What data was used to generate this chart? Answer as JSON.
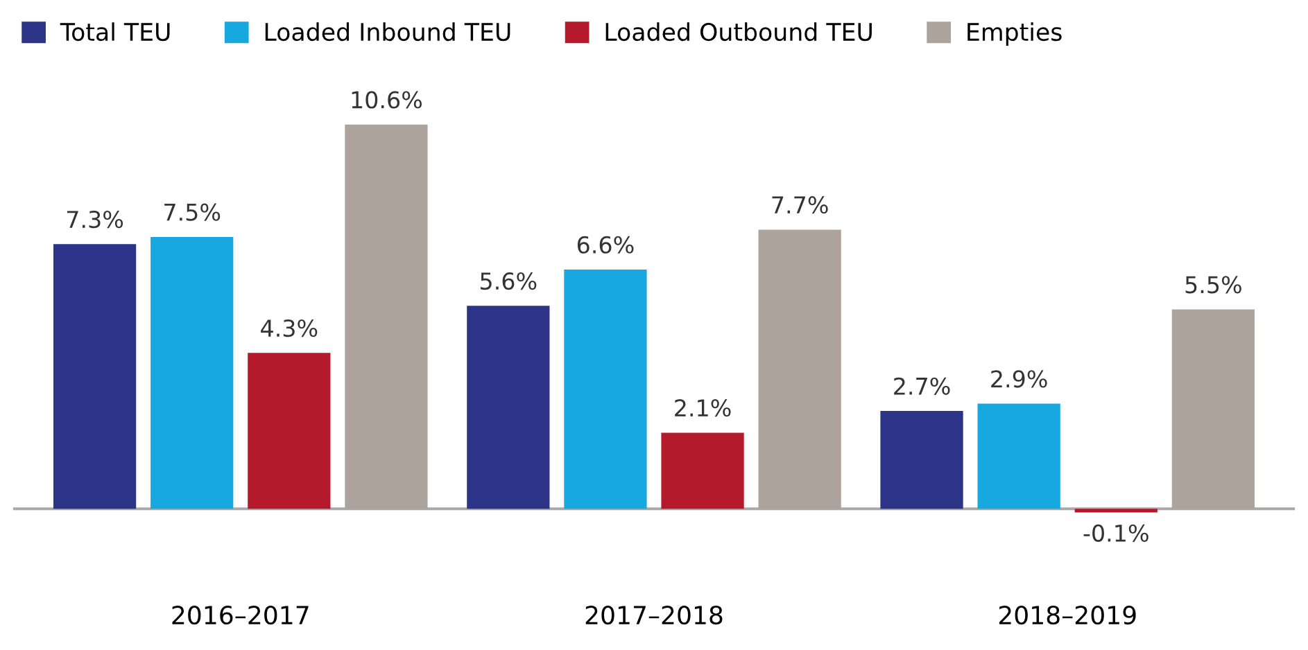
{
  "chart_data": {
    "type": "bar",
    "categories": [
      "2016–2017",
      "2017–2018",
      "2018–2019"
    ],
    "series": [
      {
        "name": "Total TEU",
        "color": "#2b3487",
        "values": [
          7.3,
          5.6,
          2.7
        ],
        "value_labels": [
          "7.3%",
          "5.6%",
          "2.7%"
        ]
      },
      {
        "name": "Loaded Inbound TEU",
        "color": "#17a8df",
        "values": [
          7.5,
          6.6,
          2.9
        ],
        "value_labels": [
          "7.5%",
          "6.6%",
          "2.9%"
        ]
      },
      {
        "name": "Loaded Outbound TEU",
        "color": "#b5192c",
        "values": [
          4.3,
          2.1,
          -0.1
        ],
        "value_labels": [
          "4.3%",
          "2.1%",
          "-0.1%"
        ]
      },
      {
        "name": "Empties",
        "color": "#aca39d",
        "values": [
          10.6,
          7.7,
          5.5
        ],
        "value_labels": [
          "10.6%",
          "7.7%",
          "5.5%"
        ]
      }
    ],
    "legend": "top left",
    "grid": false
  }
}
